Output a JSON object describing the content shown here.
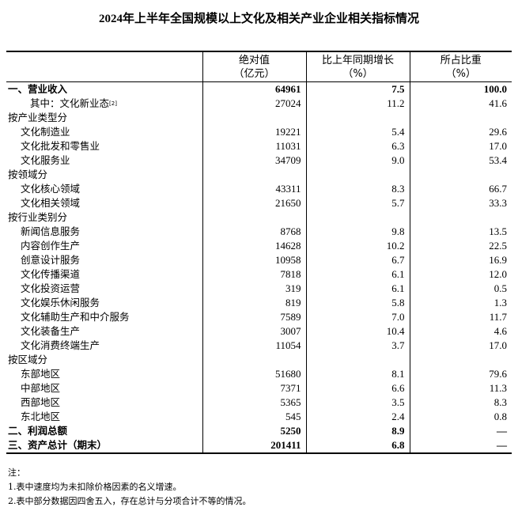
{
  "title": "2024年上半年全国规模以上文化及相关产业企业相关指标情况",
  "headers": [
    {
      "l1": "",
      "l2": ""
    },
    {
      "l1": "绝对值",
      "l2": "（亿元）"
    },
    {
      "l1": "比上年同期增长",
      "l2": "（%）"
    },
    {
      "l1": "所占比重",
      "l2": "（%）"
    }
  ],
  "rows": [
    {
      "label": "一、营业收入",
      "v": "64961",
      "g": "7.5",
      "s": "100.0",
      "lvl": 0,
      "bold": true
    },
    {
      "label": "其中：文化新业态",
      "sup": "[2]",
      "v": "27024",
      "g": "11.2",
      "s": "41.6",
      "lvl": 2
    },
    {
      "label": "按产业类型分",
      "v": "",
      "g": "",
      "s": "",
      "lvl": 0
    },
    {
      "label": "文化制造业",
      "v": "19221",
      "g": "5.4",
      "s": "29.6",
      "lvl": 1
    },
    {
      "label": "文化批发和零售业",
      "v": "11031",
      "g": "6.3",
      "s": "17.0",
      "lvl": 1
    },
    {
      "label": "文化服务业",
      "v": "34709",
      "g": "9.0",
      "s": "53.4",
      "lvl": 1
    },
    {
      "label": "按领域分",
      "v": "",
      "g": "",
      "s": "",
      "lvl": 0
    },
    {
      "label": "文化核心领域",
      "v": "43311",
      "g": "8.3",
      "s": "66.7",
      "lvl": 1
    },
    {
      "label": "文化相关领域",
      "v": "21650",
      "g": "5.7",
      "s": "33.3",
      "lvl": 1
    },
    {
      "label": "按行业类别分",
      "v": "",
      "g": "",
      "s": "",
      "lvl": 0
    },
    {
      "label": "新闻信息服务",
      "v": "8768",
      "g": "9.8",
      "s": "13.5",
      "lvl": 1
    },
    {
      "label": "内容创作生产",
      "v": "14628",
      "g": "10.2",
      "s": "22.5",
      "lvl": 1
    },
    {
      "label": "创意设计服务",
      "v": "10958",
      "g": "6.7",
      "s": "16.9",
      "lvl": 1
    },
    {
      "label": "文化传播渠道",
      "v": "7818",
      "g": "6.1",
      "s": "12.0",
      "lvl": 1
    },
    {
      "label": "文化投资运营",
      "v": "319",
      "g": "6.1",
      "s": "0.5",
      "lvl": 1
    },
    {
      "label": "文化娱乐休闲服务",
      "v": "819",
      "g": "5.8",
      "s": "1.3",
      "lvl": 1
    },
    {
      "label": "文化辅助生产和中介服务",
      "v": "7589",
      "g": "7.0",
      "s": "11.7",
      "lvl": 1
    },
    {
      "label": "文化装备生产",
      "v": "3007",
      "g": "10.4",
      "s": "4.6",
      "lvl": 1
    },
    {
      "label": "文化消费终端生产",
      "v": "11054",
      "g": "3.7",
      "s": "17.0",
      "lvl": 1
    },
    {
      "label": "按区域分",
      "v": "",
      "g": "",
      "s": "",
      "lvl": 0
    },
    {
      "label": "东部地区",
      "v": "51680",
      "g": "8.1",
      "s": "79.6",
      "lvl": 1
    },
    {
      "label": "中部地区",
      "v": "7371",
      "g": "6.6",
      "s": "11.3",
      "lvl": 1
    },
    {
      "label": "西部地区",
      "v": "5365",
      "g": "3.5",
      "s": "8.3",
      "lvl": 1
    },
    {
      "label": "东北地区",
      "v": "545",
      "g": "2.4",
      "s": "0.8",
      "lvl": 1
    },
    {
      "label": "二、利润总额",
      "v": "5250",
      "g": "8.9",
      "s": "—",
      "lvl": 0,
      "bold": true
    },
    {
      "label": "三、资产总计（期末）",
      "v": "201411",
      "g": "6.8",
      "s": "—",
      "lvl": 0,
      "bold": true
    }
  ],
  "notes": [
    "注：",
    "1.表中速度均为未扣除价格因素的名义增速。",
    "2.表中部分数据因四舍五入，存在总计与分项合计不等的情况。"
  ]
}
